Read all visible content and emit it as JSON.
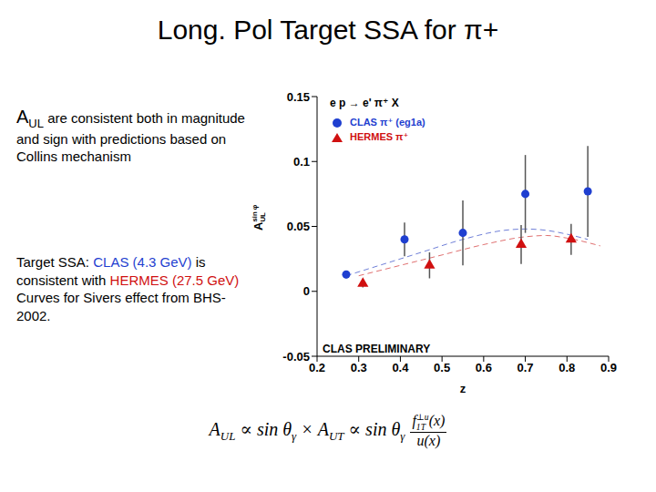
{
  "slide_title": "Long. Pol Target SSA for π+",
  "text_1": {
    "symbol": "A",
    "sub": "UL",
    "big": " are consistent",
    "rest": " both in magnitude and sign with predictions based on Collins mechanism"
  },
  "text_2": [
    {
      "text": "Target SSA: ",
      "color": "#000000"
    },
    {
      "text": "CLAS (4.3 GeV)",
      "color": "#1f3fd0"
    },
    {
      "text": " is consistent  with ",
      "color": "#000000"
    },
    {
      "text": "HERMES (27.5 GeV)",
      "color": "#d01010"
    },
    {
      "text": " Curves for Sivers effect from BHS-2002.",
      "color": "#000000"
    }
  ],
  "formula": {
    "left": [
      {
        "text": "A",
        "sub": "UL"
      },
      {
        "text": " ∝ sin θ",
        "sub": "γ"
      },
      {
        "text": " × A",
        "sub": "UT"
      },
      {
        "text": " ∝ sin θ",
        "sub": "γ"
      }
    ],
    "fraction": {
      "numerator": [
        {
          "text": "f",
          "sub": "1T",
          "sup": "⊥u"
        },
        {
          "text": "(x)"
        }
      ],
      "denominator": [
        {
          "text": "u(x)"
        }
      ]
    }
  },
  "chart_data": {
    "type": "scatter",
    "title": "e p → e' π⁺ X",
    "xlabel": "z",
    "ylabel": {
      "text": "A",
      "sub": "UL",
      "sup": "sin φ"
    },
    "annotation": "CLAS PRELIMINARY",
    "legend": "upper left",
    "xlim": [
      0.2,
      0.9
    ],
    "xticks": [
      0.2,
      0.3,
      0.4,
      0.5,
      0.6,
      0.7,
      0.8,
      0.9
    ],
    "ylim": [
      -0.05,
      0.15
    ],
    "yticks": [
      -0.05,
      0,
      0.05,
      0.1,
      0.15
    ],
    "series": [
      {
        "name": "CLAS π⁺ (eg1a)",
        "type": "scatter",
        "marker": "circle",
        "color": "#1f3fd0",
        "x": [
          0.27,
          0.41,
          0.55,
          0.7,
          0.85
        ],
        "values": [
          0.013,
          0.04,
          0.045,
          0.075,
          0.077
        ],
        "errors": [
          0.003,
          0.013,
          0.025,
          0.03,
          0.035
        ]
      },
      {
        "name": "HERMES π⁺",
        "type": "scatter",
        "marker": "triangle",
        "color": "#d01010",
        "x": [
          0.31,
          0.47,
          0.69,
          0.81
        ],
        "values": [
          0.006,
          0.02,
          0.036,
          0.04
        ],
        "errors": [
          0.003,
          0.01,
          0.015,
          0.012
        ]
      },
      {
        "type": "line",
        "line_style": "dashed",
        "color": "#7080d8",
        "x": [
          0.27,
          0.35,
          0.45,
          0.55,
          0.65,
          0.7,
          0.75,
          0.8,
          0.85
        ],
        "values": [
          0.012,
          0.02,
          0.03,
          0.04,
          0.047,
          0.048,
          0.047,
          0.044,
          0.04
        ]
      },
      {
        "type": "line",
        "line_style": "dashed",
        "color": "#e07070",
        "x": [
          0.3,
          0.4,
          0.5,
          0.6,
          0.7,
          0.75,
          0.8,
          0.88
        ],
        "values": [
          0.012,
          0.02,
          0.028,
          0.036,
          0.042,
          0.043,
          0.041,
          0.035
        ]
      }
    ]
  }
}
